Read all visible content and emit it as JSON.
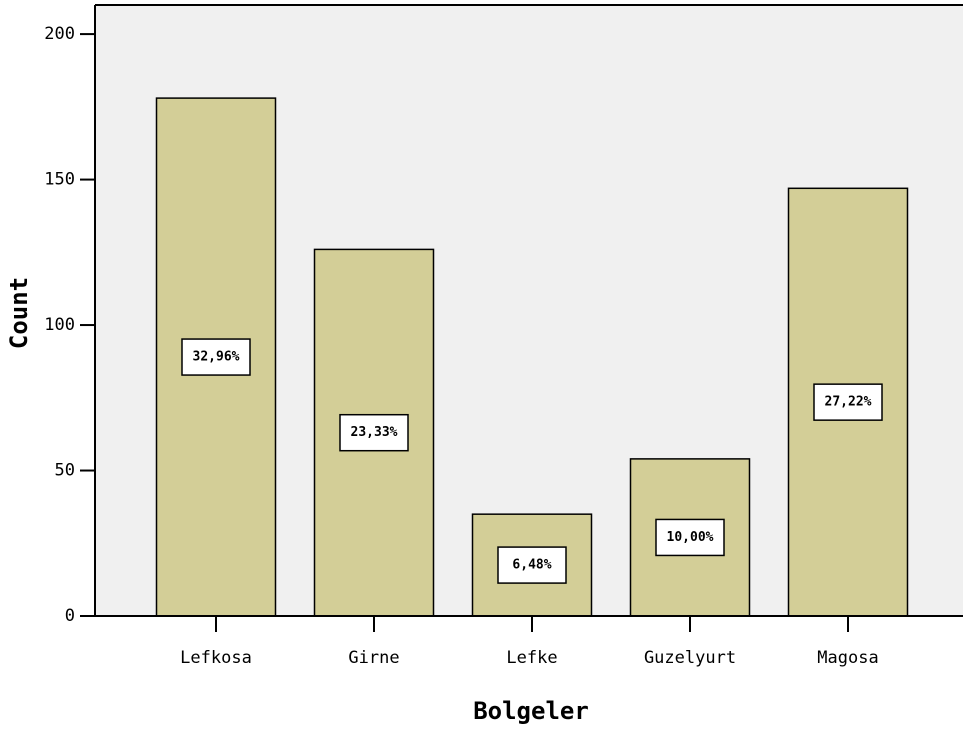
{
  "chart_data": {
    "type": "bar",
    "x_label": "Bolgeler",
    "y_label": "Count",
    "categories": [
      "Lefkosa",
      "Girne",
      "Lefke",
      "Guzelyurt",
      "Magosa"
    ],
    "values": [
      178,
      126,
      35,
      54,
      147
    ],
    "percents": [
      32.96,
      23.33,
      6.48,
      10.0,
      27.22
    ],
    "percent_labels": [
      "32,96%",
      "23,33%",
      "6,48%",
      "10,00%",
      "27,22%"
    ],
    "color": "#d3ce97",
    "ylim": [
      0,
      210
    ],
    "yticks": [
      0,
      50,
      100,
      150,
      200
    ]
  }
}
